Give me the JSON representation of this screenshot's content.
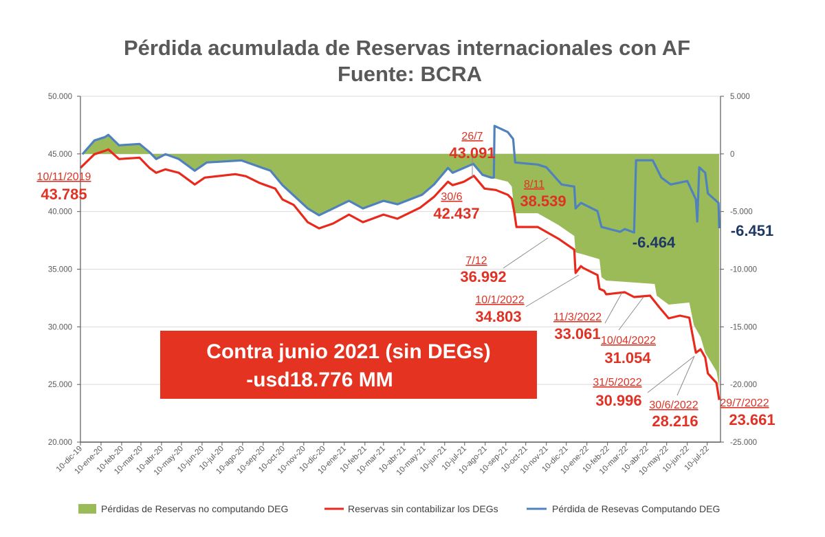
{
  "chart_data": {
    "type": "line",
    "title": "Pérdida acumulada de Reservas internacionales con AF",
    "subtitle": "Fuente: BCRA",
    "x_unit": "days since 10-dic-19",
    "x_start_date": "2019-12-10",
    "x_range_days": [
      0,
      963
    ],
    "y_left": {
      "range": [
        20000,
        50000
      ],
      "ticks": [
        "20.000",
        "25.000",
        "30.000",
        "35.000",
        "40.000",
        "45.000",
        "50.000"
      ],
      "tick_values": [
        20000,
        25000,
        30000,
        35000,
        40000,
        45000,
        50000
      ]
    },
    "y_right": {
      "range": [
        -25000,
        5000
      ],
      "ticks": [
        "-25.000",
        "-20.000",
        "-15.000",
        "-10.000",
        "-5.000",
        "0",
        "5.000"
      ],
      "tick_values": [
        -25000,
        -20000,
        -15000,
        -10000,
        -5000,
        0,
        5000
      ]
    },
    "x_ticks": [
      "10-dic-19",
      "10-ene-20",
      "10-feb-20",
      "10-mar-20",
      "10-abr-20",
      "10-may-20",
      "10-jun-20",
      "10-jul-20",
      "10-ago-20",
      "10-sep-20",
      "10-oct-20",
      "10-nov-20",
      "10-dic-20",
      "10-ene-21",
      "10-feb-21",
      "10-mar-21",
      "10-abr-21",
      "10-may-21",
      "10-jun-21",
      "10-jul-21",
      "10-ago-21",
      "10-sep-21",
      "10-oct-21",
      "10-nov-21",
      "10-dic-21",
      "10-ene-22",
      "10-feb-22",
      "10-mar-22",
      "10-abr-22",
      "10-may-22",
      "10-jun-22",
      "10-jul-22"
    ],
    "grid": true,
    "legend_position": "bottom",
    "series": [
      {
        "name": "Pérdidas de Reservas no computando DEG",
        "type": "area",
        "axis": "right",
        "color": "#9BBB59",
        "points": [
          [
            3,
            -29
          ],
          [
            21,
            1163
          ],
          [
            37,
            1461
          ],
          [
            42,
            1655
          ],
          [
            58,
            746
          ],
          [
            89,
            865
          ],
          [
            104,
            150
          ],
          [
            114,
            -446
          ],
          [
            128,
            -29
          ],
          [
            148,
            -446
          ],
          [
            172,
            -1460
          ],
          [
            190,
            -745
          ],
          [
            242,
            -566
          ],
          [
            286,
            -1460
          ],
          [
            304,
            -2712
          ],
          [
            342,
            -4726
          ],
          [
            359,
            -5322
          ],
          [
            404,
            -4070
          ],
          [
            425,
            -4726
          ],
          [
            456,
            -4070
          ],
          [
            477,
            -4368
          ],
          [
            514,
            -3546
          ],
          [
            532,
            -2652
          ],
          [
            553,
            -1222
          ],
          [
            560,
            -1639
          ],
          [
            591,
            -864
          ],
          [
            605,
            -1817
          ],
          [
            618,
            -2056
          ],
          [
            643,
            -2414
          ],
          [
            649,
            -2831
          ],
          [
            653,
            -5143
          ],
          [
            688,
            -5143
          ],
          [
            719,
            -6157
          ],
          [
            743,
            -7111
          ],
          [
            745,
            -8542
          ],
          [
            757,
            -8721
          ],
          [
            781,
            -9138
          ],
          [
            784,
            -10689
          ],
          [
            791,
            -10987
          ],
          [
            864,
            -11285
          ],
          [
            867,
            -12299
          ],
          [
            885,
            -13074
          ],
          [
            916,
            -12895
          ],
          [
            923,
            -14863
          ],
          [
            933,
            -15877
          ],
          [
            940,
            -17248
          ],
          [
            957,
            -18858
          ],
          [
            961,
            -20200
          ]
        ]
      },
      {
        "name": "Reservas sin contabilizar los DEGs",
        "type": "line",
        "axis": "left",
        "color": "#E8291C",
        "points": [
          [
            0,
            43785
          ],
          [
            21,
            44971
          ],
          [
            37,
            45269
          ],
          [
            42,
            45388
          ],
          [
            58,
            44554
          ],
          [
            89,
            44673
          ],
          [
            104,
            43778
          ],
          [
            114,
            43361
          ],
          [
            128,
            43659
          ],
          [
            148,
            43361
          ],
          [
            172,
            42348
          ],
          [
            187,
            42944
          ],
          [
            233,
            43242
          ],
          [
            249,
            43063
          ],
          [
            270,
            42467
          ],
          [
            293,
            41990
          ],
          [
            304,
            41049
          ],
          [
            321,
            40572
          ],
          [
            342,
            39082
          ],
          [
            359,
            38545
          ],
          [
            380,
            38962
          ],
          [
            404,
            39738
          ],
          [
            425,
            39082
          ],
          [
            456,
            39738
          ],
          [
            477,
            39380
          ],
          [
            511,
            40334
          ],
          [
            532,
            41275
          ],
          [
            553,
            42586
          ],
          [
            560,
            42288
          ],
          [
            577,
            42586
          ],
          [
            592,
            43091
          ],
          [
            608,
            41990
          ],
          [
            625,
            41871
          ],
          [
            643,
            41454
          ],
          [
            649,
            41100
          ],
          [
            653,
            39857
          ],
          [
            656,
            38664
          ],
          [
            688,
            38664
          ],
          [
            719,
            37650
          ],
          [
            743,
            36696
          ],
          [
            745,
            34669
          ],
          [
            753,
            35265
          ],
          [
            757,
            35087
          ],
          [
            778,
            34490
          ],
          [
            781,
            33297
          ],
          [
            788,
            33119
          ],
          [
            791,
            32821
          ],
          [
            819,
            33000
          ],
          [
            833,
            32582
          ],
          [
            857,
            32701
          ],
          [
            871,
            31688
          ],
          [
            885,
            30734
          ],
          [
            902,
            30972
          ],
          [
            916,
            30793
          ],
          [
            926,
            27752
          ],
          [
            933,
            28050
          ],
          [
            940,
            27334
          ],
          [
            944,
            25963
          ],
          [
            957,
            25128
          ],
          [
            961,
            23661
          ]
        ]
      },
      {
        "name": "Pérdida de Resevas Computando DEG",
        "type": "line",
        "axis": "left",
        "color": "#4F81BD",
        "points": [
          [
            3,
            44971
          ],
          [
            21,
            46163
          ],
          [
            37,
            46461
          ],
          [
            42,
            46655
          ],
          [
            58,
            45746
          ],
          [
            89,
            45865
          ],
          [
            104,
            45150
          ],
          [
            114,
            44554
          ],
          [
            128,
            44971
          ],
          [
            148,
            44554
          ],
          [
            172,
            43540
          ],
          [
            190,
            44255
          ],
          [
            242,
            44434
          ],
          [
            286,
            43540
          ],
          [
            304,
            42288
          ],
          [
            342,
            40274
          ],
          [
            359,
            39678
          ],
          [
            404,
            40930
          ],
          [
            425,
            40274
          ],
          [
            456,
            40930
          ],
          [
            477,
            40632
          ],
          [
            514,
            41454
          ],
          [
            532,
            42348
          ],
          [
            553,
            43778
          ],
          [
            560,
            43361
          ],
          [
            591,
            44136
          ],
          [
            605,
            43183
          ],
          [
            618,
            42944
          ],
          [
            622,
            42944
          ],
          [
            623,
            47430
          ],
          [
            643,
            46893
          ],
          [
            651,
            46297
          ],
          [
            654,
            44255
          ],
          [
            688,
            44077
          ],
          [
            701,
            43838
          ],
          [
            724,
            42348
          ],
          [
            743,
            42169
          ],
          [
            745,
            40274
          ],
          [
            753,
            40751
          ],
          [
            778,
            40036
          ],
          [
            784,
            38664
          ],
          [
            812,
            38247
          ],
          [
            819,
            38485
          ],
          [
            833,
            38187
          ],
          [
            836,
            44448
          ],
          [
            861,
            44448
          ],
          [
            874,
            42944
          ],
          [
            888,
            42348
          ],
          [
            913,
            42646
          ],
          [
            926,
            41049
          ],
          [
            928,
            39141
          ],
          [
            931,
            43838
          ],
          [
            940,
            43361
          ],
          [
            944,
            41573
          ],
          [
            960,
            40751
          ],
          [
            961,
            38549
          ]
        ]
      }
    ],
    "annotations": [
      {
        "date": "10/11/2019",
        "value": "43.785"
      },
      {
        "date": "26/7",
        "value": "43.091"
      },
      {
        "date": "30/6",
        "value": "42.437"
      },
      {
        "date": "8/11",
        "value": "38.539"
      },
      {
        "date": "7/12",
        "value": "36.992"
      },
      {
        "date": "10/1/2022",
        "value": "34.803"
      },
      {
        "date": "11/3/2022",
        "value": "33.061"
      },
      {
        "date": "10/04/2022",
        "value": "31.054"
      },
      {
        "date": "31/5/2022",
        "value": "30.996"
      },
      {
        "date": "30/6/2022",
        "value": "28.216"
      },
      {
        "date": "29/7/2022",
        "value": "23.661"
      }
    ],
    "blue_labels": [
      "-6.464",
      "-6.451"
    ],
    "callout": {
      "line1": "Contra junio 2021 (sin DEGs)",
      "line2": "-usd18.776 MM",
      "color": "#E53322"
    }
  }
}
